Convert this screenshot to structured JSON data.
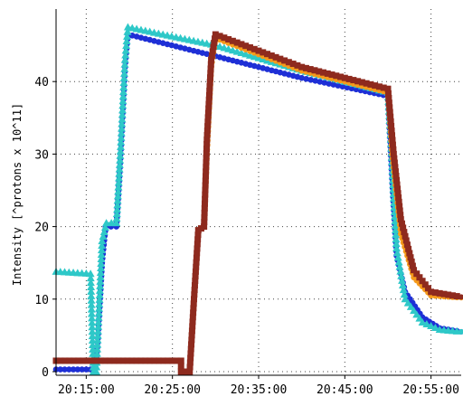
{
  "chart_data": {
    "type": "line",
    "title": "",
    "xlabel": "",
    "ylabel": "Intensity [^protons x 10^11]",
    "x_unit": "time",
    "xlim": [
      "20:11:30",
      "20:58:30"
    ],
    "ylim": [
      -0.5,
      50
    ],
    "x_ticks": [
      "20:15:00",
      "20:25:00",
      "20:35:00",
      "20:45:00",
      "20:55:00"
    ],
    "y_ticks": [
      0,
      10,
      20,
      30,
      40
    ],
    "grid": true,
    "legend": "none",
    "series": [
      {
        "color": "#1e2fd6",
        "marker": "circle",
        "points": [
          [
            "20:11:30",
            0.3
          ],
          [
            "20:15:30",
            0.3
          ],
          [
            "20:16:00",
            0
          ],
          [
            "20:16:20",
            4
          ],
          [
            "20:16:50",
            15
          ],
          [
            "20:17:15",
            20
          ],
          [
            "20:18:30",
            20
          ],
          [
            "20:19:00",
            30
          ],
          [
            "20:19:30",
            42
          ],
          [
            "20:19:50",
            46.5
          ],
          [
            "20:30:00",
            43.5
          ],
          [
            "20:40:00",
            40.5
          ],
          [
            "20:50:00",
            38
          ],
          [
            "20:50:30",
            26
          ],
          [
            "20:51:00",
            16
          ],
          [
            "20:52:00",
            11
          ],
          [
            "20:54:00",
            7.5
          ],
          [
            "20:56:00",
            6
          ],
          [
            "20:58:30",
            5.5
          ]
        ]
      },
      {
        "color": "#2ec8c8",
        "marker": "triangle",
        "points": [
          [
            "20:11:30",
            13.8
          ],
          [
            "20:15:30",
            13.5
          ],
          [
            "20:15:50",
            0
          ],
          [
            "20:16:10",
            0
          ],
          [
            "20:16:50",
            18
          ],
          [
            "20:17:20",
            20.5
          ],
          [
            "20:18:30",
            20.5
          ],
          [
            "20:19:00",
            31
          ],
          [
            "20:19:30",
            43
          ],
          [
            "20:19:50",
            47.5
          ],
          [
            "20:30:00",
            45
          ],
          [
            "20:40:00",
            41.5
          ],
          [
            "20:50:00",
            38.5
          ],
          [
            "20:50:20",
            32
          ],
          [
            "20:51:00",
            17
          ],
          [
            "20:52:00",
            10
          ],
          [
            "20:54:00",
            6.8
          ],
          [
            "20:56:00",
            5.8
          ],
          [
            "20:58:30",
            5.5
          ]
        ]
      },
      {
        "color": "#f59a1b",
        "marker": "circle",
        "points": [
          [
            "20:11:30",
            1.5
          ],
          [
            "20:26:00",
            1.5
          ],
          [
            "20:26:00",
            0
          ],
          [
            "20:27:00",
            0
          ],
          [
            "20:27:30",
            10
          ],
          [
            "20:28:00",
            19.5
          ],
          [
            "20:28:40",
            20
          ],
          [
            "20:29:00",
            30
          ],
          [
            "20:29:30",
            42
          ],
          [
            "20:30:00",
            46
          ],
          [
            "20:40:00",
            41.5
          ],
          [
            "20:50:00",
            38.5
          ],
          [
            "20:50:30",
            30
          ],
          [
            "20:51:30",
            19
          ],
          [
            "20:53:00",
            13
          ],
          [
            "20:55:00",
            10.5
          ],
          [
            "20:58:30",
            10.2
          ]
        ]
      },
      {
        "color": "#8e2a1e",
        "marker": "square",
        "points": [
          [
            "20:11:30",
            1.5
          ],
          [
            "20:26:00",
            1.5
          ],
          [
            "20:26:00",
            0
          ],
          [
            "20:27:00",
            0
          ],
          [
            "20:27:30",
            10
          ],
          [
            "20:28:00",
            19.5
          ],
          [
            "20:28:40",
            20
          ],
          [
            "20:29:00",
            32
          ],
          [
            "20:29:30",
            43
          ],
          [
            "20:30:00",
            46.5
          ],
          [
            "20:40:00",
            42
          ],
          [
            "20:50:00",
            39
          ],
          [
            "20:50:40",
            30
          ],
          [
            "20:51:30",
            21
          ],
          [
            "20:53:00",
            14
          ],
          [
            "20:55:00",
            11
          ],
          [
            "20:58:30",
            10.3
          ]
        ]
      }
    ]
  }
}
